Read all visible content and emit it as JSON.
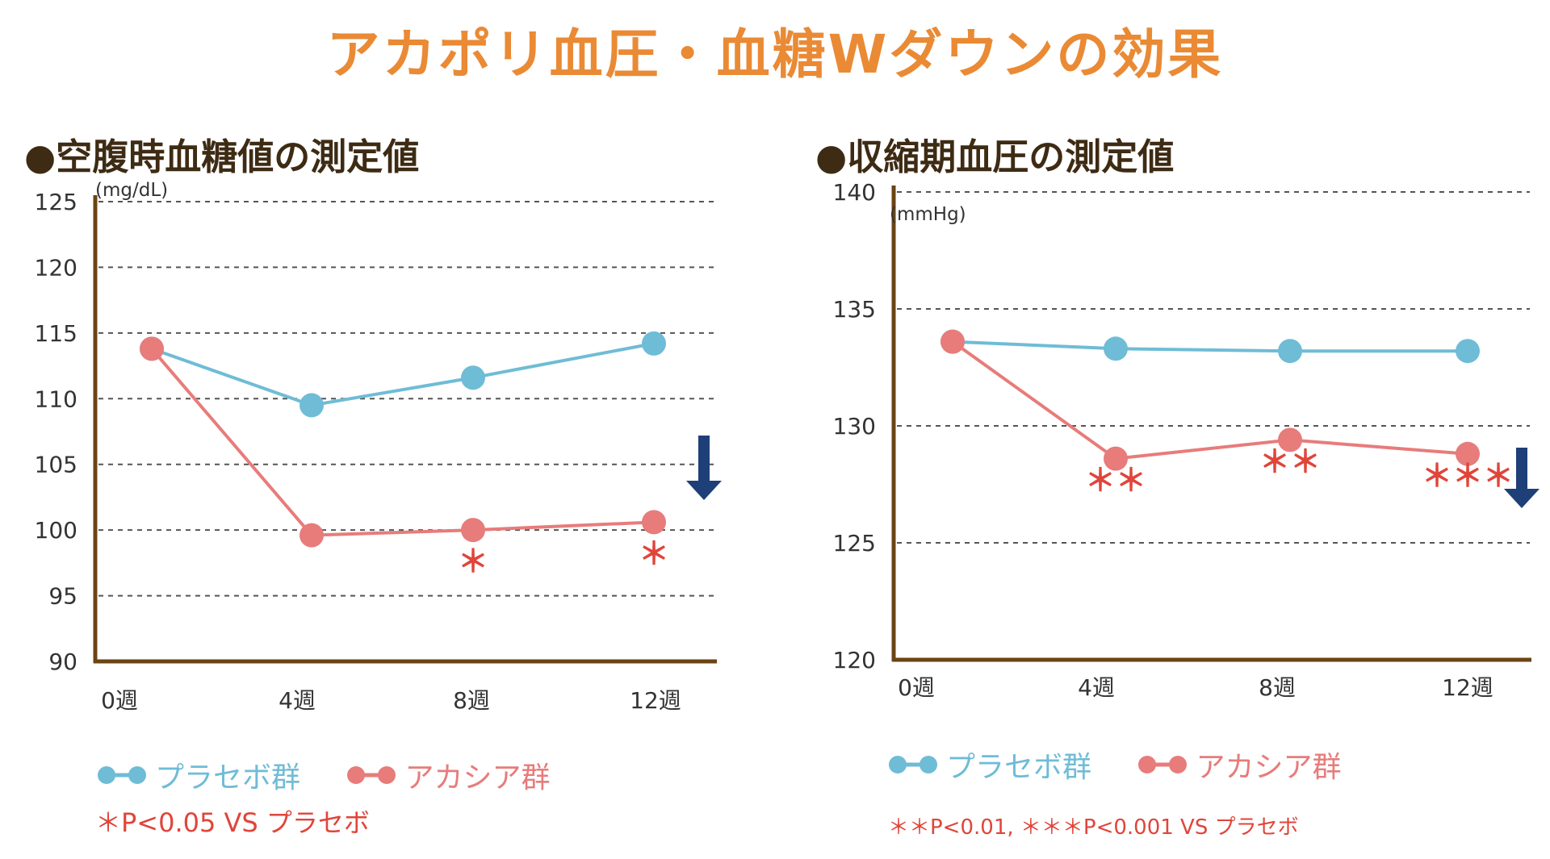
{
  "title": "アカポリ血圧・血糖Wダウンの効果",
  "colors": {
    "title": "#ea8a35",
    "placebo": "#6fbcd6",
    "acacia": "#e77c7b",
    "axis": "#6b4413",
    "grid": "#555555",
    "arrow": "#1e3f77",
    "star": "#e0453a"
  },
  "chart_data": [
    {
      "type": "line",
      "title": "●空腹時血糖値の測定値",
      "unit": "(mg/dL)",
      "categories": [
        "0週",
        "4週",
        "8週",
        "12週"
      ],
      "ylim": [
        90,
        125
      ],
      "yticks": [
        90,
        95,
        100,
        105,
        110,
        115,
        120,
        125
      ],
      "grid": true,
      "series": [
        {
          "name": "プラセボ群",
          "values": [
            113.8,
            109.5,
            111.6,
            114.2
          ]
        },
        {
          "name": "アカシア群",
          "values": [
            113.8,
            99.6,
            100.0,
            100.6
          ]
        }
      ],
      "significance": [
        "",
        "",
        "＊",
        "＊"
      ],
      "legend": [
        "プラセボ群",
        "アカシア群"
      ],
      "footnote": "＊P<0.05 VS プラセボ"
    },
    {
      "type": "line",
      "title": "●収縮期血圧の測定値",
      "unit": "(mmHg)",
      "categories": [
        "0週",
        "4週",
        "8週",
        "12週"
      ],
      "ylim": [
        120,
        140
      ],
      "yticks": [
        120,
        125,
        130,
        135,
        140
      ],
      "grid": true,
      "series": [
        {
          "name": "プラセボ群",
          "values": [
            133.6,
            133.3,
            133.2,
            133.2
          ]
        },
        {
          "name": "アカシア群",
          "values": [
            133.6,
            128.6,
            129.4,
            128.8
          ]
        }
      ],
      "significance": [
        "",
        "＊＊",
        "＊＊",
        "＊＊＊"
      ],
      "legend": [
        "プラセボ群",
        "アカシア群"
      ],
      "footnote": "＊＊P<0.01, ＊＊＊P<0.001  VS プラセボ"
    }
  ]
}
